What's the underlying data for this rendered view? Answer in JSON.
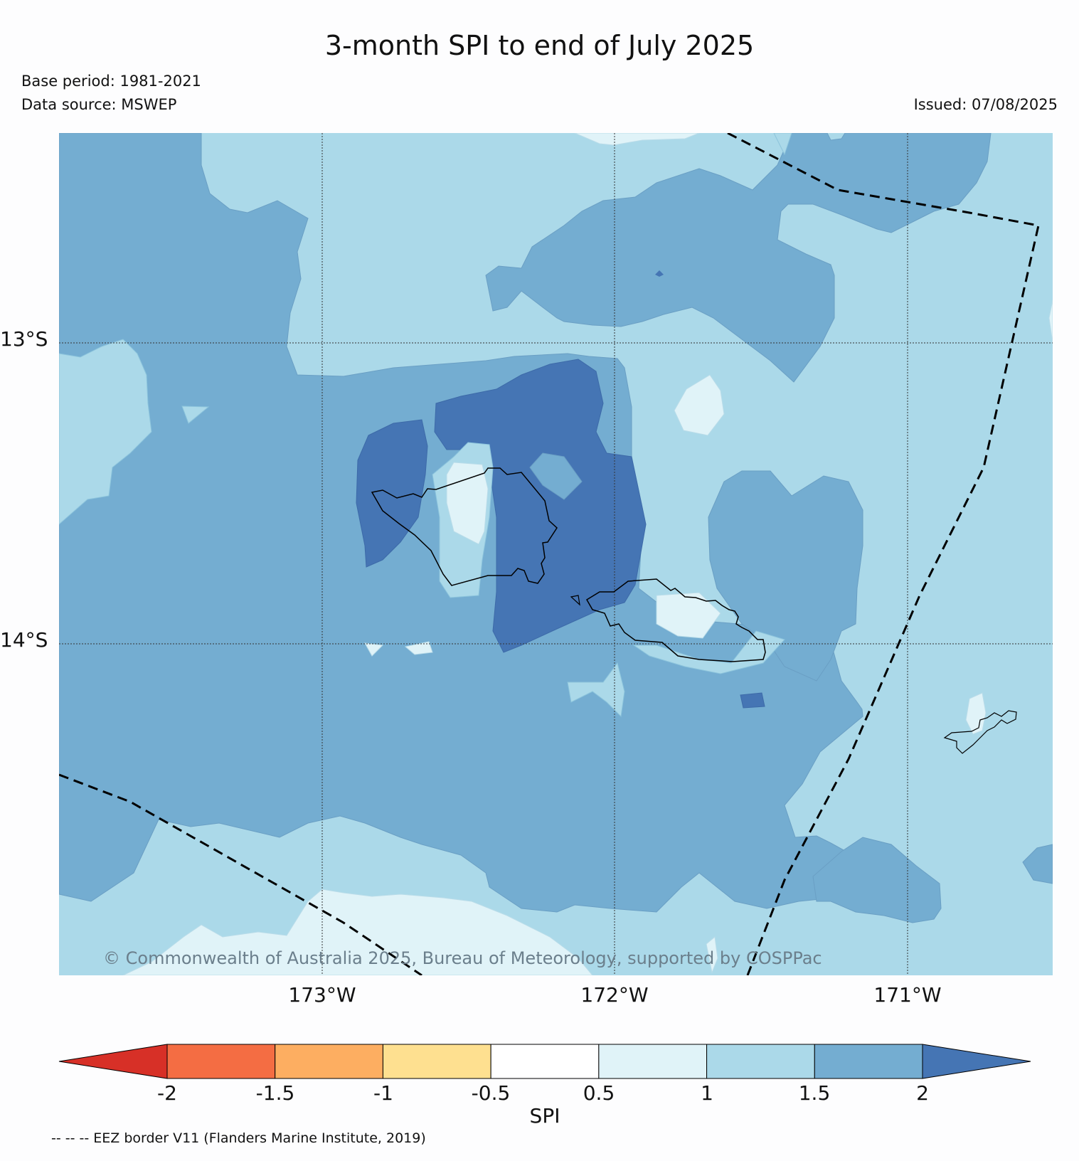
{
  "title": "3-month SPI to end of July 2025",
  "base_period": "Base period: 1981-2021",
  "data_source": "Data source: MSWEP",
  "issued": "Issued: 07/08/2025",
  "map": {
    "lat_labels": [
      "13°S",
      "14°S"
    ],
    "lon_labels": [
      "173°W",
      "172°W",
      "171°W"
    ],
    "copyright": "© Commonwealth of Australia 2025, Bureau of Meteorology, supported by COSPPac",
    "colors": {
      "band_0_5_1": "#e0f3f8",
      "band_1_1_5": "#abd9e9",
      "band_1_5_2": "#74add1",
      "band_gt_2": "#4575b4"
    }
  },
  "colorbar": {
    "label": "SPI",
    "ticks": [
      "-2",
      "-1.5",
      "-1",
      "-0.5",
      "0.5",
      "1",
      "1.5",
      "2"
    ],
    "colors": [
      "#d73027",
      "#f46d43",
      "#fdae61",
      "#fee090",
      "#ffffff",
      "#e0f3f8",
      "#abd9e9",
      "#74add1",
      "#4575b4"
    ]
  },
  "eez_note": "-- -- -- EEZ border V11 (Flanders Marine Institute, 2019)"
}
